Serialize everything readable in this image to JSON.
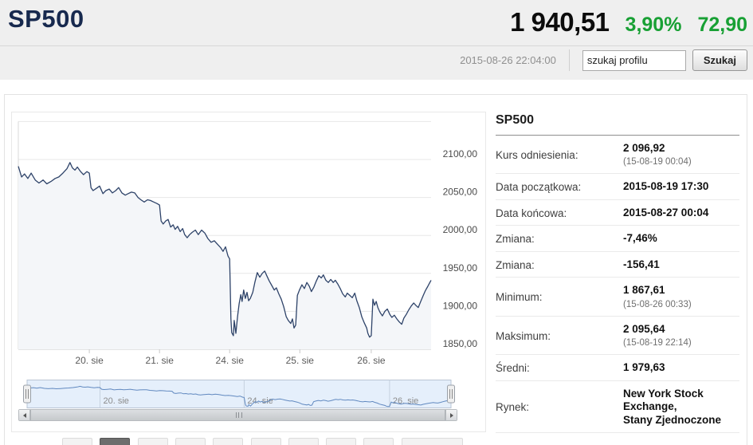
{
  "header": {
    "title": "SP500",
    "price": "1 940,51",
    "change_pct": "3,90%",
    "change_abs": "72,90",
    "timestamp": "2015-08-26 22:04:00",
    "search": {
      "value": "szukaj profilu",
      "button": "Szukaj"
    },
    "colors": {
      "up_green": "#18a034",
      "title_navy": "#17294e"
    }
  },
  "info_panel": {
    "title": "SP500",
    "rows": [
      {
        "label": "Kurs odniesienia:",
        "value": "2 096,92",
        "sub": "(15-08-19 00:04)"
      },
      {
        "label": "Data początkowa:",
        "value": "2015-08-19 17:30"
      },
      {
        "label": "Data końcowa:",
        "value": "2015-08-27 00:04"
      },
      {
        "label": "Zmiana:",
        "value": "-7,46%"
      },
      {
        "label": "Zmiana:",
        "value": "-156,41"
      },
      {
        "label": "Minimum:",
        "value": "1 867,61",
        "sub": "(15-08-26 00:33)"
      },
      {
        "label": "Maksimum:",
        "value": "2 095,64",
        "sub": "(15-08-19 22:14)"
      },
      {
        "label": "Średni:",
        "value": "1 979,63"
      },
      {
        "label": "Rynek:",
        "lines": [
          "New York Stock Exchange,",
          "Stany Zjednoczone"
        ]
      }
    ]
  },
  "chart_data": {
    "type": "area",
    "series_name": "SP500",
    "xrange": [
      "2015-08-19 17:30",
      "2015-08-27 00:04"
    ],
    "ylim": [
      1850,
      2150
    ],
    "y_gridlines": [
      2150,
      2100,
      2050,
      2000,
      1950,
      1900,
      1850
    ],
    "y_ticks": [
      {
        "v": 2100,
        "label": "2100,00"
      },
      {
        "v": 2050,
        "label": "2050,00"
      },
      {
        "v": 2000,
        "label": "2000,00"
      },
      {
        "v": 1950,
        "label": "1950,00"
      },
      {
        "v": 1900,
        "label": "1900,00"
      },
      {
        "v": 1850,
        "label": "1850,00"
      }
    ],
    "x_tick_labels": [
      "20. sie",
      "21. sie",
      "24. sie",
      "25. sie",
      "26. sie"
    ],
    "x_ticks_pct": [
      17.2,
      34.2,
      51.2,
      68.2,
      85.5
    ],
    "navigator": {
      "labels": [
        "20. sie",
        "24. sie",
        "26. sie"
      ],
      "ticks_pct": [
        17.2,
        51.2,
        85.5
      ]
    },
    "colors": {
      "line": "#2e4369",
      "area_fill": "#f4f6f9",
      "nav_line": "#6189c0",
      "nav_fill": "#e5effb"
    },
    "points": [
      [
        0,
        2091
      ],
      [
        0.8,
        2077
      ],
      [
        1.5,
        2081
      ],
      [
        2.3,
        2075
      ],
      [
        3.1,
        2082
      ],
      [
        4.1,
        2073
      ],
      [
        5,
        2069
      ],
      [
        6,
        2073
      ],
      [
        6.9,
        2068
      ],
      [
        7.9,
        2071
      ],
      [
        8.9,
        2075
      ],
      [
        9.8,
        2077
      ],
      [
        10.8,
        2082
      ],
      [
        11.8,
        2088
      ],
      [
        12.5,
        2096
      ],
      [
        13.1,
        2089
      ],
      [
        13.7,
        2086
      ],
      [
        14.3,
        2090
      ],
      [
        15.1,
        2084
      ],
      [
        15.8,
        2080
      ],
      [
        16.6,
        2084
      ],
      [
        17.2,
        2082
      ],
      [
        17.6,
        2063
      ],
      [
        18.1,
        2059
      ],
      [
        18.9,
        2062
      ],
      [
        19.7,
        2065
      ],
      [
        20.5,
        2055
      ],
      [
        21.2,
        2059
      ],
      [
        22,
        2061
      ],
      [
        22.8,
        2056
      ],
      [
        23.6,
        2059
      ],
      [
        24.3,
        2063
      ],
      [
        25.1,
        2056
      ],
      [
        25.9,
        2053
      ],
      [
        26.6,
        2055
      ],
      [
        27.4,
        2057
      ],
      [
        28.2,
        2056
      ],
      [
        29,
        2050
      ],
      [
        29.7,
        2047
      ],
      [
        30.5,
        2044
      ],
      [
        31.3,
        2047
      ],
      [
        32,
        2046
      ],
      [
        32.8,
        2044
      ],
      [
        33.6,
        2042
      ],
      [
        34.2,
        2040
      ],
      [
        34.6,
        2019
      ],
      [
        35.1,
        2015
      ],
      [
        35.7,
        2019
      ],
      [
        36.3,
        2021
      ],
      [
        36.9,
        2011
      ],
      [
        37.5,
        2014
      ],
      [
        38,
        2008
      ],
      [
        38.6,
        2012
      ],
      [
        39.2,
        2005
      ],
      [
        39.8,
        2009
      ],
      [
        40.3,
        2001
      ],
      [
        40.9,
        1997
      ],
      [
        41.5,
        2001
      ],
      [
        42.1,
        2004
      ],
      [
        42.9,
        2007
      ],
      [
        43.6,
        2001
      ],
      [
        44.4,
        2007
      ],
      [
        45.2,
        2003
      ],
      [
        45.9,
        1996
      ],
      [
        46.7,
        1991
      ],
      [
        47.5,
        1993
      ],
      [
        48.3,
        1988
      ],
      [
        49,
        1984
      ],
      [
        49.6,
        1979
      ],
      [
        50.2,
        1985
      ],
      [
        50.8,
        1973
      ],
      [
        51.2,
        1969
      ],
      [
        51.5,
        1890
      ],
      [
        51.7,
        1872
      ],
      [
        52.1,
        1868
      ],
      [
        52.3,
        1888
      ],
      [
        52.7,
        1871
      ],
      [
        53.1,
        1893
      ],
      [
        53.5,
        1910
      ],
      [
        53.9,
        1922
      ],
      [
        54.2,
        1913
      ],
      [
        54.6,
        1928
      ],
      [
        55,
        1917
      ],
      [
        55.4,
        1925
      ],
      [
        55.8,
        1914
      ],
      [
        56.2,
        1917
      ],
      [
        56.8,
        1925
      ],
      [
        57.3,
        1938
      ],
      [
        57.9,
        1951
      ],
      [
        58.5,
        1945
      ],
      [
        59.1,
        1950
      ],
      [
        59.7,
        1953
      ],
      [
        60.2,
        1947
      ],
      [
        60.8,
        1940
      ],
      [
        61.4,
        1934
      ],
      [
        62,
        1928
      ],
      [
        62.5,
        1931
      ],
      [
        63.1,
        1923
      ],
      [
        63.7,
        1916
      ],
      [
        64.3,
        1906
      ],
      [
        64.9,
        1893
      ],
      [
        65.4,
        1888
      ],
      [
        66,
        1884
      ],
      [
        66.4,
        1890
      ],
      [
        66.8,
        1878
      ],
      [
        67.2,
        1882
      ],
      [
        67.6,
        1921
      ],
      [
        68.1,
        1928
      ],
      [
        68.7,
        1935
      ],
      [
        69.3,
        1930
      ],
      [
        69.9,
        1938
      ],
      [
        70.5,
        1933
      ],
      [
        71,
        1926
      ],
      [
        71.6,
        1932
      ],
      [
        72.2,
        1940
      ],
      [
        72.8,
        1947
      ],
      [
        73.4,
        1944
      ],
      [
        73.9,
        1948
      ],
      [
        74.5,
        1941
      ],
      [
        75.1,
        1938
      ],
      [
        75.7,
        1942
      ],
      [
        76.3,
        1938
      ],
      [
        76.8,
        1941
      ],
      [
        77.4,
        1936
      ],
      [
        78,
        1930
      ],
      [
        78.6,
        1923
      ],
      [
        79.2,
        1919
      ],
      [
        79.7,
        1924
      ],
      [
        80.3,
        1921
      ],
      [
        80.9,
        1918
      ],
      [
        81.5,
        1924
      ],
      [
        82,
        1914
      ],
      [
        82.6,
        1905
      ],
      [
        83.2,
        1893
      ],
      [
        83.8,
        1885
      ],
      [
        84.4,
        1878
      ],
      [
        84.7,
        1871
      ],
      [
        85.1,
        1866
      ],
      [
        85.5,
        1868
      ],
      [
        85.9,
        1916
      ],
      [
        86.3,
        1908
      ],
      [
        86.7,
        1913
      ],
      [
        87.1,
        1905
      ],
      [
        87.6,
        1899
      ],
      [
        88.2,
        1894
      ],
      [
        88.8,
        1900
      ],
      [
        89.4,
        1903
      ],
      [
        90,
        1896
      ],
      [
        90.5,
        1892
      ],
      [
        91.1,
        1895
      ],
      [
        91.7,
        1890
      ],
      [
        92.3,
        1886
      ],
      [
        92.9,
        1883
      ],
      [
        93.4,
        1891
      ],
      [
        94,
        1896
      ],
      [
        94.6,
        1902
      ],
      [
        95.2,
        1907
      ],
      [
        95.8,
        1911
      ],
      [
        96.3,
        1908
      ],
      [
        96.9,
        1905
      ],
      [
        97.5,
        1913
      ],
      [
        98.1,
        1921
      ],
      [
        98.6,
        1927
      ],
      [
        99.2,
        1933
      ],
      [
        99.6,
        1937
      ],
      [
        100,
        1941
      ]
    ]
  },
  "range_buttons": {
    "count": 10,
    "selected_index": 1
  }
}
